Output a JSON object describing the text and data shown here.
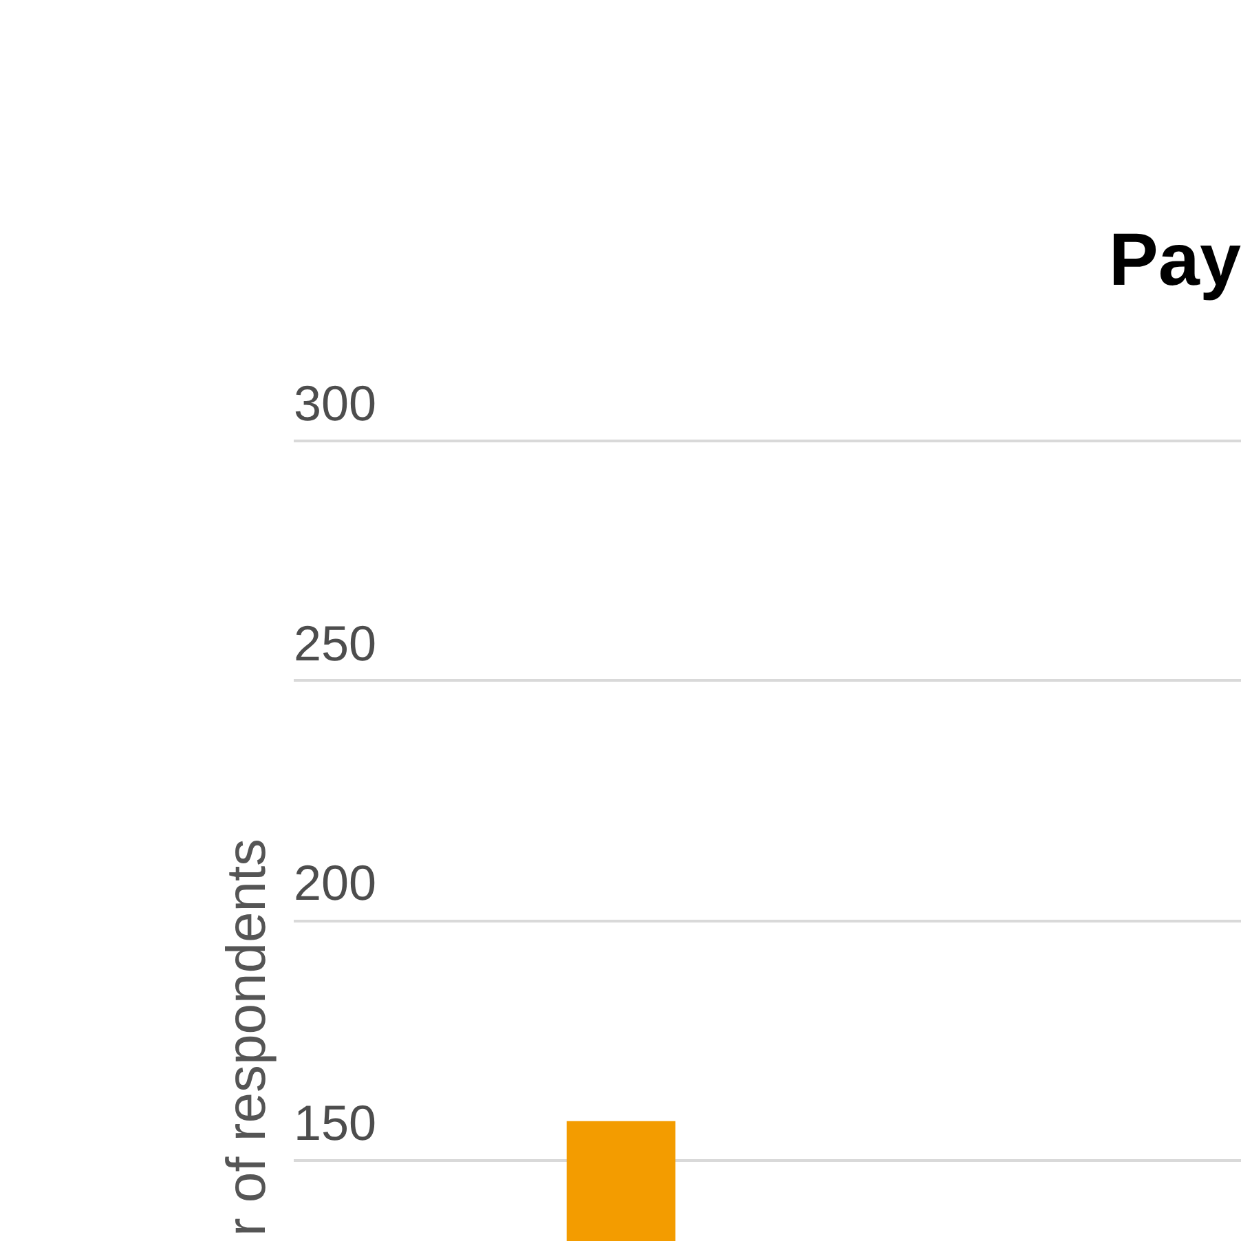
{
  "chart_data": {
    "type": "bar",
    "title": "Pay",
    "ylabel": "r of respondents",
    "categories": [
      null
    ],
    "values": [
      158
    ],
    "color": "#f39c00",
    "ylim": [
      133,
      300
    ],
    "yticks": [
      150,
      200,
      250,
      300
    ],
    "grid": "y",
    "tick_labels": "y"
  }
}
